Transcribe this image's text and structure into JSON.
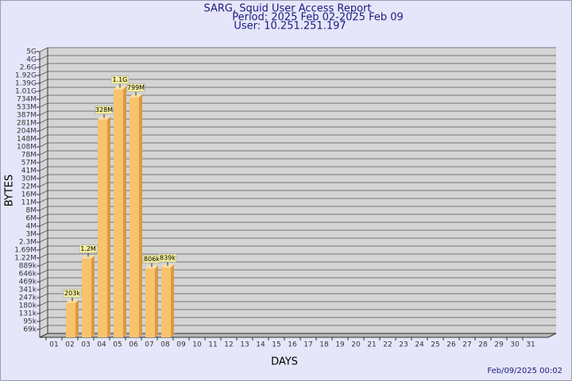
{
  "chart_data": {
    "type": "bar",
    "title": "SARG, Squid User Access Report",
    "subtitle": [
      "Period: 2025 Feb 02-2025 Feb 09",
      "User: 10.251.251.197"
    ],
    "x_label": "DAYS",
    "y_label": "BYTES",
    "footer": "Feb/09/2025 00:02",
    "categories": [
      "01",
      "02",
      "03",
      "04",
      "05",
      "06",
      "07",
      "08",
      "09",
      "10",
      "11",
      "12",
      "13",
      "14",
      "15",
      "16",
      "17",
      "18",
      "19",
      "20",
      "21",
      "22",
      "23",
      "24",
      "25",
      "26",
      "27",
      "28",
      "29",
      "30",
      "31"
    ],
    "values": [
      null,
      203000,
      1200000,
      328000000,
      1100000000,
      799000000,
      806000,
      839000,
      null,
      null,
      null,
      null,
      null,
      null,
      null,
      null,
      null,
      null,
      null,
      null,
      null,
      null,
      null,
      null,
      null,
      null,
      null,
      null,
      null,
      null,
      null
    ],
    "value_labels": [
      null,
      "203k",
      "1.2M",
      "328M",
      "1.1G",
      "799M",
      "806k",
      "839k",
      null,
      null,
      null,
      null,
      null,
      null,
      null,
      null,
      null,
      null,
      null,
      null,
      null,
      null,
      null,
      null,
      null,
      null,
      null,
      null,
      null,
      null,
      null
    ],
    "color": "#f8c36c",
    "side_color": "#dc9a40",
    "ylim": [
      0,
      5000000000
    ],
    "yticks": [
      {
        "value": 69000,
        "label": "69k"
      },
      {
        "value": 95000,
        "label": "95k"
      },
      {
        "value": 131000,
        "label": "131k"
      },
      {
        "value": 180000,
        "label": "180k"
      },
      {
        "value": 247000,
        "label": "247k"
      },
      {
        "value": 341000,
        "label": "341k"
      },
      {
        "value": 469000,
        "label": "469k"
      },
      {
        "value": 646000,
        "label": "646k"
      },
      {
        "value": 889000,
        "label": "889k"
      },
      {
        "value": 1220000,
        "label": "1.22M"
      },
      {
        "value": 1690000,
        "label": "1.69M"
      },
      {
        "value": 2300000,
        "label": "2.3M"
      },
      {
        "value": 3000000,
        "label": "3M"
      },
      {
        "value": 4000000,
        "label": "4M"
      },
      {
        "value": 6000000,
        "label": "6M"
      },
      {
        "value": 8000000,
        "label": "8M"
      },
      {
        "value": 11000000,
        "label": "11M"
      },
      {
        "value": 16000000,
        "label": "16M"
      },
      {
        "value": 22000000,
        "label": "22M"
      },
      {
        "value": 30000000,
        "label": "30M"
      },
      {
        "value": 41000000,
        "label": "41M"
      },
      {
        "value": 57000000,
        "label": "57M"
      },
      {
        "value": 78000000,
        "label": "78M"
      },
      {
        "value": 108000000,
        "label": "108M"
      },
      {
        "value": 148000000,
        "label": "148M"
      },
      {
        "value": 204000000,
        "label": "204M"
      },
      {
        "value": 281000000,
        "label": "281M"
      },
      {
        "value": 387000000,
        "label": "387M"
      },
      {
        "value": 533000000,
        "label": "533M"
      },
      {
        "value": 734000000,
        "label": "734M"
      },
      {
        "value": 1010000000,
        "label": "1.01G"
      },
      {
        "value": 1390000000,
        "label": "1.39G"
      },
      {
        "value": 1920000000,
        "label": "1.92G"
      },
      {
        "value": 2600000000,
        "label": "2.6G"
      },
      {
        "value": 4000000000,
        "label": "4G"
      },
      {
        "value": 5000000000,
        "label": "5G"
      }
    ],
    "grid": true
  }
}
